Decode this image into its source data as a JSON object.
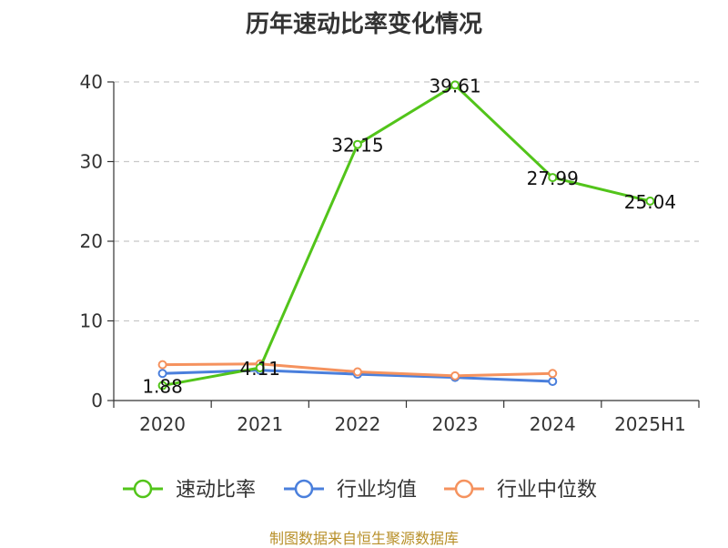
{
  "chart_data": {
    "type": "line",
    "title": "历年速动比率变化情况",
    "categories": [
      "2020",
      "2021",
      "2022",
      "2023",
      "2024",
      "2025H1"
    ],
    "ylim": [
      0,
      40
    ],
    "yticks": [
      "0",
      "10",
      "20",
      "30",
      "40"
    ],
    "grid": true,
    "legend_position": "bottom",
    "series": [
      {
        "name": "速动比率",
        "color": "#52c41a",
        "values": [
          1.88,
          4.11,
          32.15,
          39.61,
          27.99,
          25.04
        ],
        "labels": [
          "1.88",
          "4.11",
          "32.15",
          "39.61",
          "27.99",
          "25.04"
        ],
        "show_labels": true
      },
      {
        "name": "行业均值",
        "color": "#4a7fdc",
        "values": [
          3.4,
          3.8,
          3.3,
          2.9,
          2.4,
          null
        ],
        "show_labels": false
      },
      {
        "name": "行业中位数",
        "color": "#f5925e",
        "values": [
          4.5,
          4.6,
          3.6,
          3.1,
          3.4,
          null
        ],
        "show_labels": false
      }
    ]
  },
  "source": "制图数据来自恒生聚源数据库"
}
